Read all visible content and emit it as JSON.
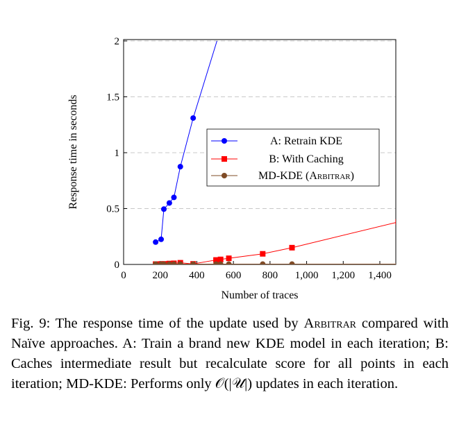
{
  "chart_data": {
    "type": "line",
    "xlabel": "Number of traces",
    "ylabel": "Response time in seconds",
    "xlim": [
      0,
      1500
    ],
    "ylim": [
      0,
      2
    ],
    "x_ticks": [
      "0",
      "200",
      "400",
      "600",
      "800",
      "1,000",
      "1,200",
      "1,400"
    ],
    "x_tick_values": [
      0,
      200,
      400,
      600,
      800,
      1000,
      1200,
      1400
    ],
    "y_ticks": [
      "0",
      "0.5",
      "1",
      "1.5",
      "2"
    ],
    "y_tick_values": [
      0,
      0.5,
      1,
      1.5,
      2
    ],
    "grid": "horizontal-dashed",
    "legend_position": "center-right",
    "series": [
      {
        "name": "A: Retrain KDE",
        "color": "#0000ff",
        "marker": "circle",
        "x": [
          175,
          205,
          220,
          250,
          275,
          310,
          380
        ],
        "y": [
          0.2,
          0.225,
          0.495,
          0.55,
          0.6,
          0.875,
          1.31
        ],
        "continues_to": {
          "x": 510,
          "y": 2.0
        }
      },
      {
        "name": "B: With Caching",
        "color": "#ff0000",
        "marker": "square",
        "x": [
          175,
          205,
          220,
          250,
          275,
          310,
          380,
          505,
          530,
          575,
          760,
          920,
          1500
        ],
        "y": [
          0.003,
          0.004,
          0.005,
          0.008,
          0.01,
          0.015,
          0.005,
          0.04,
          0.045,
          0.055,
          0.095,
          0.15,
          0.38
        ]
      },
      {
        "name": "MD-KDE (ARBITRAR)",
        "name_plain": "MD-KDE (",
        "name_smallcaps": "Arbitrar",
        "name_close": ")",
        "color": "#7f4b26",
        "marker": "circle",
        "x": [
          175,
          205,
          220,
          250,
          275,
          310,
          380,
          505,
          530,
          575,
          760,
          920,
          1500
        ],
        "y": [
          0.003,
          0.003,
          0.003,
          0.003,
          0.003,
          0.003,
          0.003,
          0.003,
          0.003,
          0.003,
          0.003,
          0.003,
          0.003
        ]
      }
    ]
  },
  "caption": {
    "part1": "Fig. 9: The response time of the update used by ",
    "smallcaps": "Arbitrar",
    "part2": " compared with Naïve approaches. A: Train a brand new KDE model in each iteration; B: Caches intermediate result but recalculate score for all points in each iteration; MD-KDE: Performs only ",
    "math": "𝒪(|𝒰|)",
    "part3": " updates in each iteration."
  }
}
